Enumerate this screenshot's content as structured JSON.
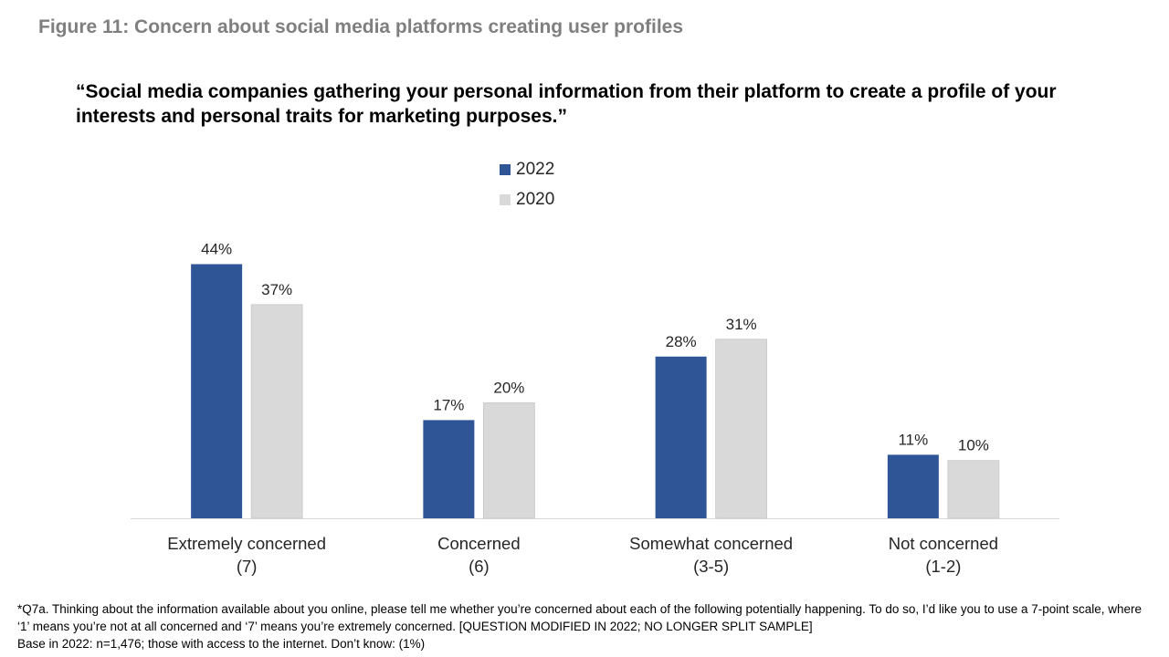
{
  "figure_title": "Figure 11: Concern about social media platforms creating user profiles",
  "chart_data": {
    "type": "bar",
    "title": "“Social media companies gathering your personal information from their platform to create a profile of your interests and personal traits for marketing purposes.”",
    "categories": [
      [
        "Extremely concerned",
        "(7)"
      ],
      [
        "Concerned",
        "(6)"
      ],
      [
        "Somewhat concerned",
        "(3-5)"
      ],
      [
        "Not concerned",
        "(1-2)"
      ]
    ],
    "series": [
      {
        "name": "2022",
        "color": "#2f5597",
        "values": [
          44,
          17,
          28,
          11
        ],
        "labels": [
          "44%",
          "17%",
          "28%",
          "11%"
        ]
      },
      {
        "name": "2020",
        "color": "#d9d9d9",
        "values": [
          37,
          20,
          31,
          10
        ],
        "labels": [
          "37%",
          "20%",
          "31%",
          "10%"
        ]
      }
    ],
    "ylim": [
      0,
      50
    ],
    "unit": "%",
    "legend_position": "top-center",
    "grid": false
  },
  "footnote": {
    "line1": "*Q7a. Thinking about the information available about you online, please tell me whether you’re concerned about each of the following potentially happening. To do so, I’d like you to use a 7-point scale, where ‘1’ means you’re not at all concerned and ‘7’ means you’re extremely concerned. [QUESTION MODIFIED IN 2022; NO LONGER SPLIT SAMPLE]",
    "line2": "Base in 2022: n=1,476; those with access to the internet. Don’t know: (1%)"
  }
}
